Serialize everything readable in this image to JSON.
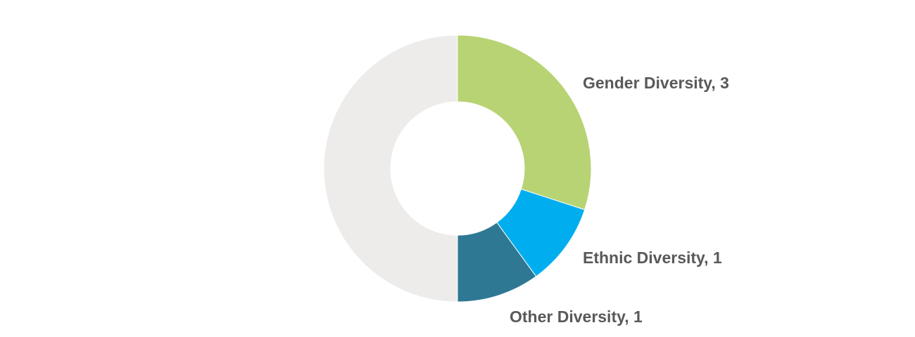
{
  "chart_data": {
    "type": "pie",
    "donut": true,
    "total": 10,
    "slices": [
      {
        "label": "Gender Diversity",
        "value": 3,
        "color": "#B8D373",
        "display": "Gender Diversity, 3"
      },
      {
        "label": "Ethnic Diversity",
        "value": 1,
        "color": "#00AEEF",
        "display": "Ethnic Diversity, 1"
      },
      {
        "label": "Other Diversity",
        "value": 1,
        "color": "#2E7893",
        "display": "Other Diversity, 1"
      },
      {
        "label": "",
        "value": 5,
        "color": "#EDECEB",
        "display": ""
      }
    ]
  }
}
